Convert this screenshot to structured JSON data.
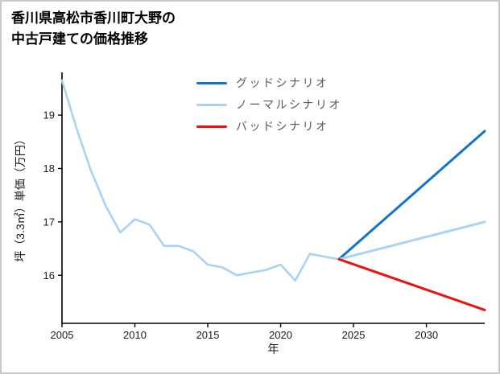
{
  "header": {
    "title_line1": "香川県高松市香川町大野の",
    "title_line2": "中古戸建ての価格推移"
  },
  "chart_data": {
    "type": "line",
    "title": "香川県高松市香川町大野の中古戸建ての価格推移",
    "xlabel": "年",
    "ylabel": "坪（3.3㎡）単価（万円）",
    "xlim": [
      2005,
      2034
    ],
    "ylim": [
      15.1,
      19.8
    ],
    "xticks": [
      2005,
      2010,
      2015,
      2020,
      2025,
      2030
    ],
    "yticks": [
      16,
      17,
      18,
      19
    ],
    "grid": false,
    "legend_position": "upper-center-left",
    "legend": [
      {
        "label": "グッドシナリオ",
        "color": "#1273c8"
      },
      {
        "label": "ノーマルシナリオ",
        "color": "#a8d3f2"
      },
      {
        "label": "バッドシナリオ",
        "color": "#ee1111"
      }
    ],
    "series": [
      {
        "name": "ノーマルシナリオ",
        "segment": "historical",
        "color": "#a8d3f2",
        "x": [
          2005,
          2006,
          2007,
          2008,
          2009,
          2010,
          2011,
          2012,
          2013,
          2014,
          2015,
          2016,
          2017,
          2018,
          2019,
          2020,
          2021,
          2022,
          2023,
          2024
        ],
        "y": [
          19.65,
          18.75,
          17.95,
          17.3,
          16.8,
          17.05,
          16.95,
          16.55,
          16.55,
          16.45,
          16.2,
          16.15,
          16.0,
          16.05,
          16.1,
          16.2,
          15.9,
          16.4,
          16.35,
          16.3
        ]
      },
      {
        "name": "グッドシナリオ",
        "segment": "forecast",
        "color": "#1273c8",
        "x": [
          2024,
          2034
        ],
        "y": [
          16.3,
          18.7
        ]
      },
      {
        "name": "ノーマルシナリオ",
        "segment": "forecast",
        "color": "#a8d3f2",
        "x": [
          2024,
          2034
        ],
        "y": [
          16.3,
          17.0
        ]
      },
      {
        "name": "バッドシナリオ",
        "segment": "forecast",
        "color": "#ee1111",
        "x": [
          2024,
          2034
        ],
        "y": [
          16.3,
          15.35
        ]
      }
    ]
  }
}
